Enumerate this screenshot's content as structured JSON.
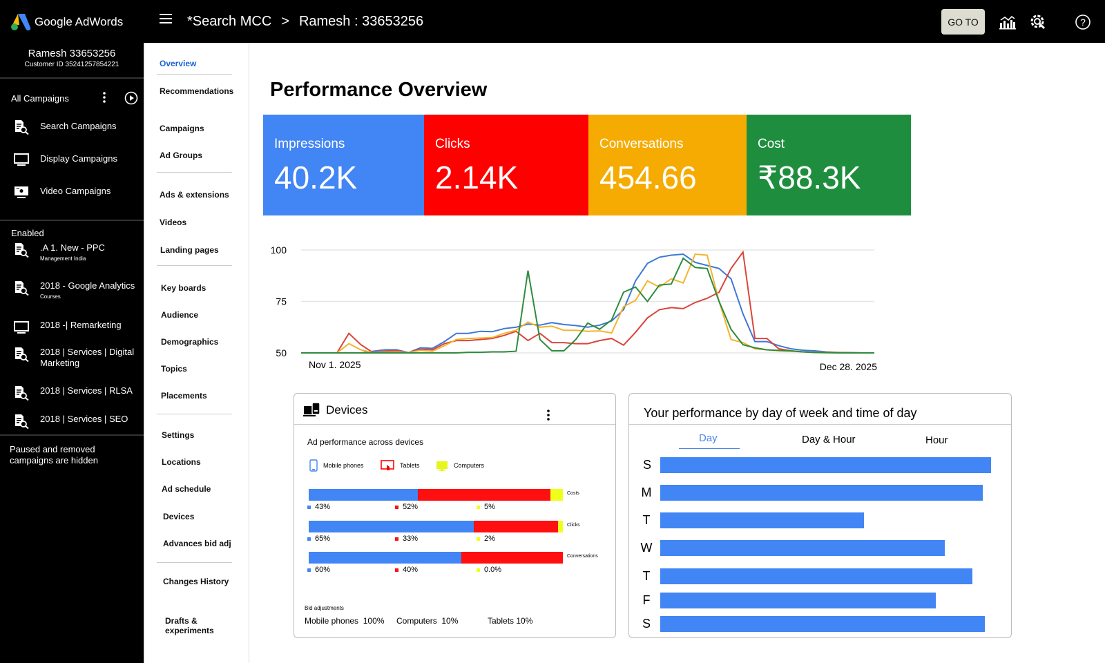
{
  "app": {
    "title": "Google AdWords"
  },
  "header": {
    "breadcrumb": [
      "*Search MCC",
      ">",
      "Ramesh : 33653256"
    ],
    "goto_label": "GO TO",
    "icons": [
      "reports-icon",
      "tools-icon",
      "help-icon"
    ]
  },
  "account": {
    "name": "Ramesh 33653256",
    "customer_id": "Customer ID 35241257854221"
  },
  "left_nav": {
    "all_campaigns": "All Campaigns",
    "campaign_types": [
      {
        "label": "Search Campaigns",
        "icon": "search-campaign-icon"
      },
      {
        "label": "Display Campaigns",
        "icon": "display-icon"
      },
      {
        "label": "Video Campaigns",
        "icon": "video-icon"
      }
    ],
    "enabled_label": "Enabled",
    "campaigns": [
      {
        "label": ".A 1. New - PPC",
        "sub": "Management India",
        "icon": "search-campaign-icon"
      },
      {
        "label": "2018 - Google Analytics",
        "sub": "Courses",
        "icon": "search-campaign-icon"
      },
      {
        "label": "2018 -| Remarketing",
        "sub": "",
        "icon": "display-icon"
      },
      {
        "label": "2018 | Services | Digital Marketing",
        "sub": "",
        "icon": "search-campaign-icon"
      },
      {
        "label": "2018 | Services | RLSA",
        "sub": "",
        "icon": "search-campaign-icon"
      },
      {
        "label": "2018 | Services | SEO",
        "sub": "",
        "icon": "search-campaign-icon"
      }
    ],
    "footer_note": "Paused and removed campaigns are hidden"
  },
  "secondary_nav": {
    "items": [
      "Overview",
      "Recommendations",
      "Campaigns",
      "Ad Groups",
      "Ads & extensions",
      "Videos",
      "Landing pages",
      "Key boards",
      "Audience",
      "Demographics",
      "Topics",
      "Placements",
      "Settings",
      "Locations",
      "Ad schedule",
      "Devices",
      "Advances bid adj",
      "Changes History",
      "Drafts & experiments"
    ],
    "active": "Overview"
  },
  "page": {
    "title": "Performance Overview"
  },
  "kpis": [
    {
      "label": "Impressions",
      "value": "40.2K",
      "color": "#4285f4"
    },
    {
      "label": "Clicks",
      "value": "2.14K",
      "color": "#ff0000"
    },
    {
      "label": "Conversations",
      "value": "454.66",
      "color": "#f6ab02"
    },
    {
      "label": "Cost",
      "value": "₹88.3K",
      "color": "#1e8e3e"
    }
  ],
  "chart_data": [
    {
      "type": "line",
      "title": "",
      "x_start_label": "Nov 1. 2025",
      "x_end_label": "Dec 28. 2025",
      "ylim": [
        50,
        100
      ],
      "yticks": [
        50,
        75,
        100
      ],
      "grid": true,
      "series": [
        {
          "name": "Impressions",
          "color": "#3c78d8",
          "values": [
            50,
            50,
            50,
            50,
            50,
            50,
            50.8,
            51.5,
            51.5,
            50.2,
            52.5,
            52.2,
            55.5,
            59.5,
            59.5,
            60.5,
            60.3,
            61.8,
            62.5,
            64,
            63.5,
            64.7,
            63.8,
            63.3,
            62.5,
            63.5,
            65.5,
            71,
            85,
            93.5,
            96.5,
            97.5,
            98,
            94,
            92.5,
            91,
            86,
            69,
            55.5,
            55.5,
            53.5,
            52,
            51.3,
            51,
            50.5,
            50.3,
            50.2,
            50,
            50
          ]
        },
        {
          "name": "Clicks",
          "color": "#d9453b",
          "values": [
            50,
            50,
            50,
            50,
            59.5,
            54,
            50.2,
            50.8,
            51,
            50.1,
            51.8,
            51.5,
            54.5,
            56,
            56,
            56.5,
            57,
            58.5,
            60.5,
            56,
            59.5,
            55,
            55,
            54.5,
            54.5,
            56,
            57,
            53.8,
            60,
            67,
            71,
            72,
            71.5,
            74.5,
            76.5,
            79.5,
            91,
            99,
            57,
            57,
            52,
            51,
            50.5,
            50.3,
            50.3,
            50.2,
            50.1,
            50,
            50
          ]
        },
        {
          "name": "Conversations",
          "color": "#f3b42f",
          "values": [
            50,
            50,
            50,
            50,
            54.5,
            51.5,
            50.1,
            50.3,
            50.4,
            50.2,
            51.2,
            50.8,
            53.5,
            56.5,
            57,
            57.2,
            57.5,
            59.5,
            61,
            65,
            62.5,
            63,
            61,
            61,
            60.5,
            60.7,
            59.7,
            72.5,
            75.5,
            85,
            82,
            86,
            84,
            98,
            97.5,
            75,
            56.5,
            55,
            52,
            51.5,
            51,
            50.8,
            50.5,
            50.3,
            50.2,
            50.2,
            50.1,
            50,
            50
          ]
        },
        {
          "name": "Cost",
          "color": "#2e8b3e",
          "values": [
            50,
            50,
            50,
            50,
            50,
            50,
            50,
            50,
            50,
            50,
            50,
            50,
            50,
            50,
            50.3,
            50.3,
            50.5,
            50.5,
            50.8,
            90,
            56.5,
            51,
            51,
            56.5,
            64.5,
            61.5,
            66,
            79.5,
            82,
            75,
            83,
            83.5,
            96,
            91.5,
            91,
            75,
            61.5,
            54,
            52.5,
            51.5,
            51.2,
            51,
            50.5,
            50.2,
            50.1,
            50,
            50,
            50,
            50
          ]
        }
      ]
    },
    {
      "type": "bar",
      "title": "Ad performance across devices",
      "orientation": "horizontal-stacked",
      "categories": [
        "Costs",
        "Clicks",
        "Conversations"
      ],
      "series": [
        {
          "name": "Mobile phones",
          "color": "#4285f4",
          "values": [
            43,
            65,
            60
          ],
          "labels": [
            "43%",
            "65%",
            "60%"
          ]
        },
        {
          "name": "Tablets",
          "color": "#ff0f0f",
          "values": [
            52,
            33,
            40
          ],
          "labels": [
            "52%",
            "33%",
            "40%"
          ]
        },
        {
          "name": "Computers",
          "color": "#eeff1a",
          "values": [
            5,
            2,
            0
          ],
          "labels": [
            "5%",
            "2%",
            "0.0%"
          ]
        }
      ]
    },
    {
      "type": "bar",
      "title": "Your performance by day of week and time of day",
      "orientation": "horizontal",
      "categories": [
        "S",
        "M",
        "T",
        "W",
        "T",
        "F",
        "S"
      ],
      "values": [
        100,
        97.5,
        61.6,
        86,
        94.4,
        83.3,
        98.1
      ],
      "xlim": [
        0,
        100
      ]
    }
  ],
  "devices_card": {
    "title": "Devices",
    "subtitle": "Ad performance across devices",
    "legend": [
      {
        "label": "Mobile phones",
        "icon": "mobile-phone-icon"
      },
      {
        "label": "Tablets",
        "icon": "tablet-icon"
      },
      {
        "label": "Computers",
        "icon": "computer-icon"
      }
    ],
    "bid_adjustments_label": "Bid adjustments",
    "bid_adjustments": [
      {
        "device": "Mobile phones",
        "value": "100%"
      },
      {
        "device": "Computers",
        "value": "10%"
      },
      {
        "device": "Tablets",
        "value": "10%"
      }
    ]
  },
  "schedule_card": {
    "title": "Your performance by day of week and time of day",
    "tabs": [
      "Day",
      "Day & Hour",
      "Hour"
    ],
    "active_tab": "Day"
  }
}
